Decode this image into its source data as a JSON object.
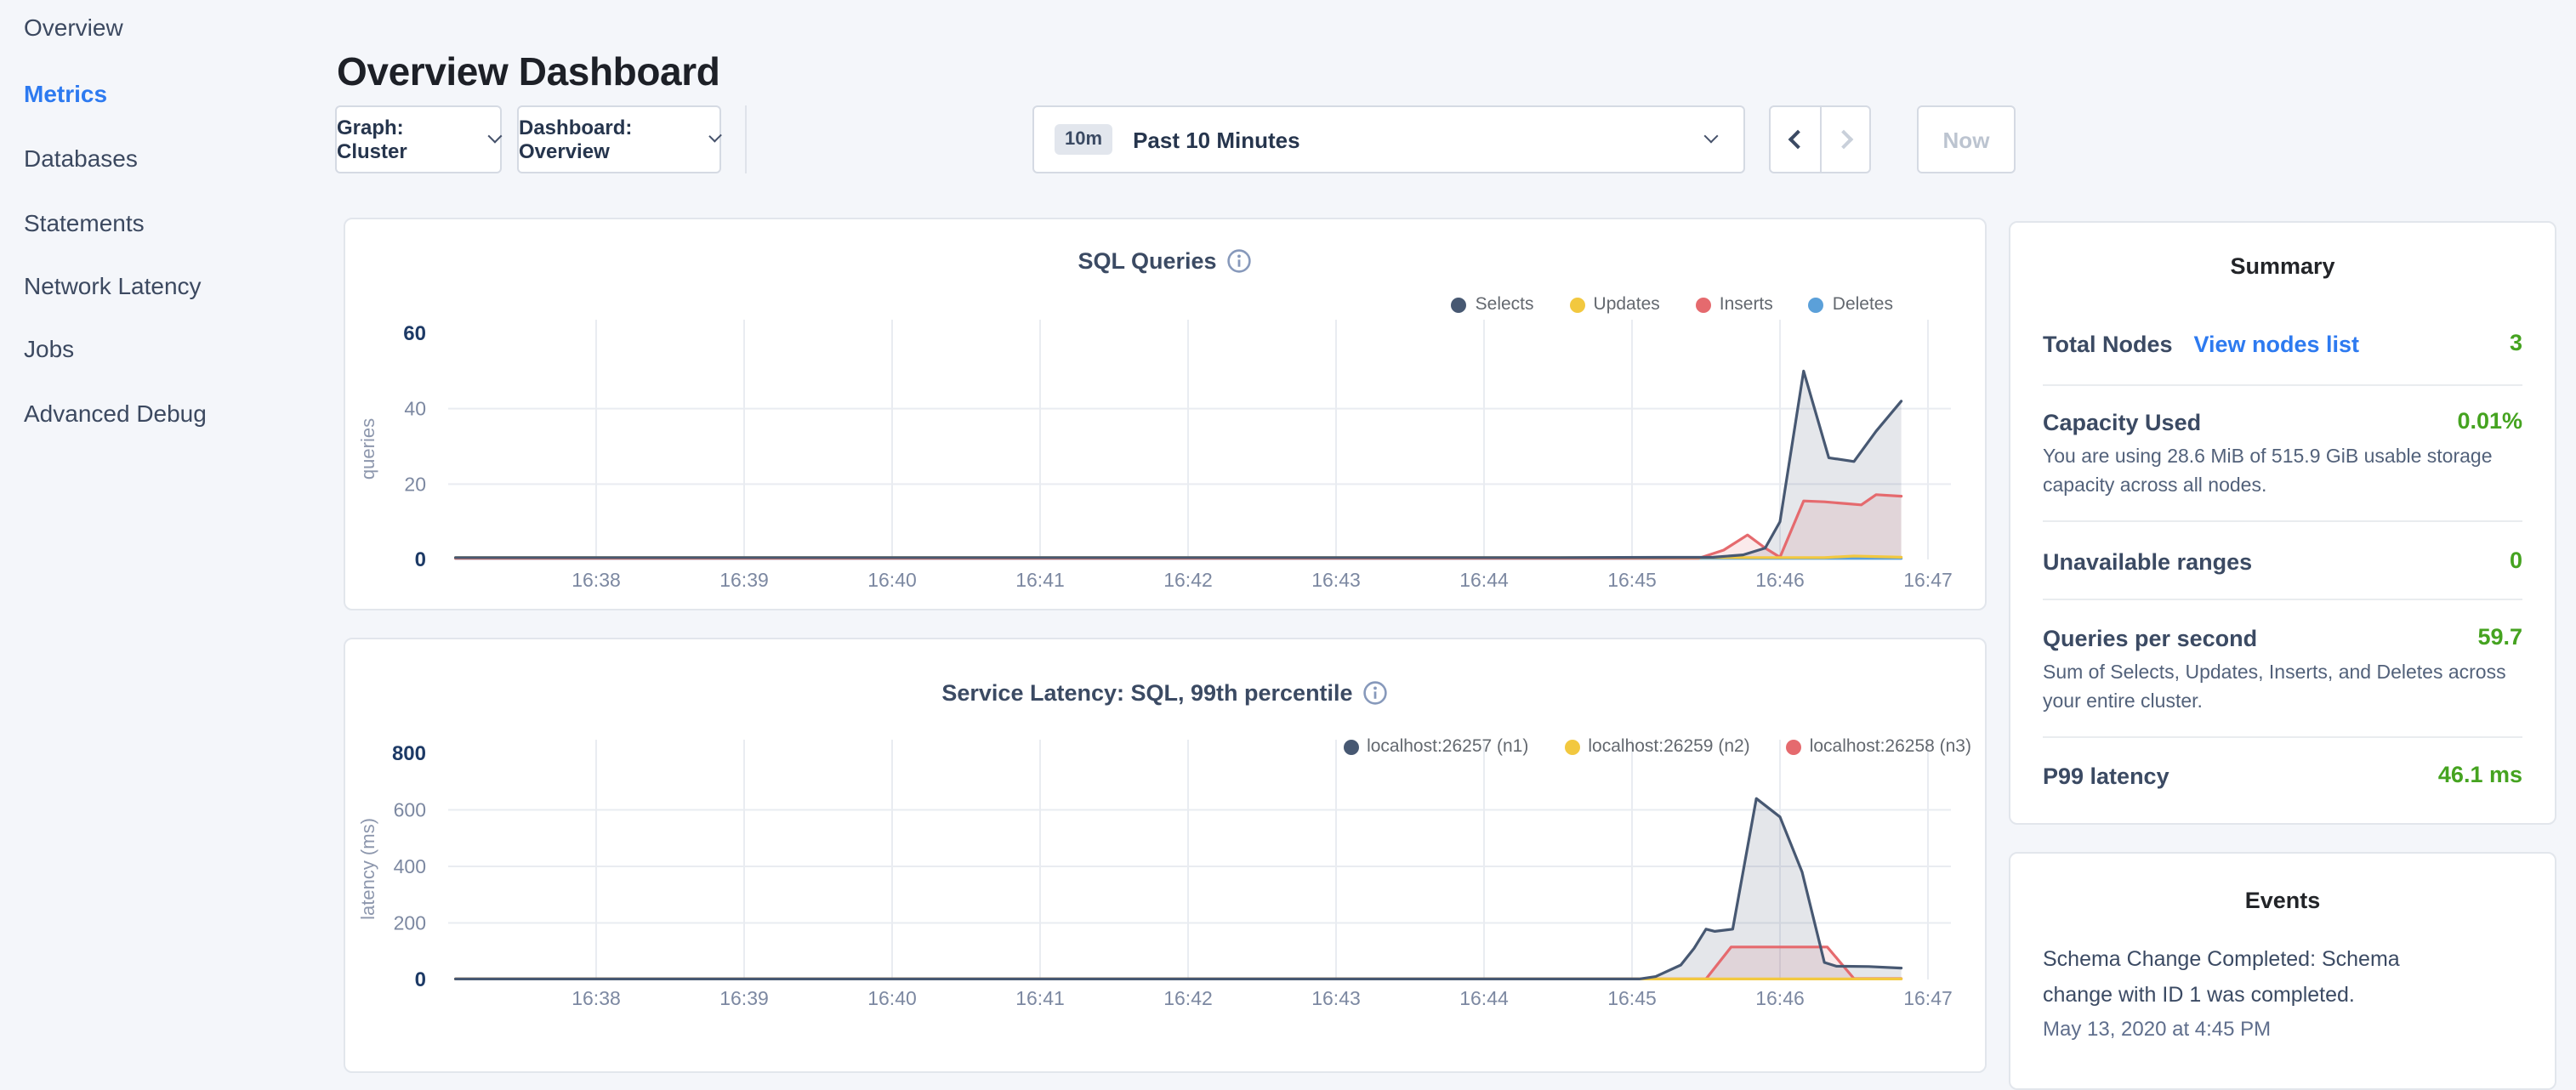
{
  "sidebar": {
    "items": [
      {
        "label": "Overview",
        "active": false
      },
      {
        "label": "Metrics",
        "active": true
      },
      {
        "label": "Databases",
        "active": false
      },
      {
        "label": "Statements",
        "active": false
      },
      {
        "label": "Network Latency",
        "active": false
      },
      {
        "label": "Jobs",
        "active": false
      },
      {
        "label": "Advanced Debug",
        "active": false
      }
    ]
  },
  "header": {
    "title": "Overview Dashboard"
  },
  "toolbar": {
    "graph_dropdown": "Graph: Cluster",
    "dashboard_dropdown": "Dashboard: Overview",
    "time_window_badge": "10m",
    "time_window_label": "Past 10 Minutes",
    "now_label": "Now"
  },
  "chart_data": [
    {
      "type": "area",
      "title": "SQL Queries",
      "ylabel": "queries",
      "ylim": [
        0,
        60
      ],
      "y_ticks": [
        0,
        20,
        40,
        60
      ],
      "x_domain": [
        37.0,
        47.15
      ],
      "x_ticks": [
        {
          "t": 38,
          "label": "16:38"
        },
        {
          "t": 39,
          "label": "16:39"
        },
        {
          "t": 40,
          "label": "16:40"
        },
        {
          "t": 41,
          "label": "16:41"
        },
        {
          "t": 42,
          "label": "16:42"
        },
        {
          "t": 43,
          "label": "16:43"
        },
        {
          "t": 44,
          "label": "16:44"
        },
        {
          "t": 45,
          "label": "16:45"
        },
        {
          "t": 46,
          "label": "16:46"
        },
        {
          "t": 47,
          "label": "16:47"
        }
      ],
      "grid": true,
      "legend_position": "top-right",
      "series": [
        {
          "name": "Selects",
          "color": "#475872",
          "fill": "rgba(71,88,114,0.14)",
          "points": [
            [
              37.05,
              0.5
            ],
            [
              44.5,
              0.5
            ],
            [
              45.55,
              0.6
            ],
            [
              45.75,
              1.2
            ],
            [
              45.9,
              3
            ],
            [
              46.0,
              10
            ],
            [
              46.16,
              50
            ],
            [
              46.33,
              27
            ],
            [
              46.5,
              26
            ],
            [
              46.65,
              34
            ],
            [
              46.82,
              42
            ]
          ]
        },
        {
          "name": "Updates",
          "color": "#f2c83f",
          "fill": "rgba(242,200,63,0.12)",
          "points": [
            [
              37.05,
              0.5
            ],
            [
              46.3,
              0.5
            ],
            [
              46.5,
              0.9
            ],
            [
              46.82,
              0.6
            ]
          ]
        },
        {
          "name": "Inserts",
          "color": "#e56a6e",
          "fill": "rgba(229,106,110,0.14)",
          "points": [
            [
              37.05,
              0.3
            ],
            [
              45.45,
              0.3
            ],
            [
              45.62,
              2.5
            ],
            [
              45.78,
              6.5
            ],
            [
              45.9,
              3
            ],
            [
              46.0,
              0.6
            ],
            [
              46.16,
              15.5
            ],
            [
              46.3,
              15.3
            ],
            [
              46.45,
              14.8
            ],
            [
              46.55,
              14.5
            ],
            [
              46.65,
              17.2
            ],
            [
              46.82,
              16.8
            ]
          ]
        },
        {
          "name": "Deletes",
          "color": "#5ba0d9",
          "fill": "rgba(91,160,217,0.12)",
          "points": [
            [
              37.05,
              0.25
            ],
            [
              46.82,
              0.25
            ]
          ]
        }
      ]
    },
    {
      "type": "area",
      "title": "Service Latency: SQL, 99th percentile",
      "ylabel": "latency (ms)",
      "ylim": [
        0,
        800
      ],
      "y_ticks": [
        0,
        200,
        400,
        600,
        800
      ],
      "x_domain": [
        37.0,
        47.15
      ],
      "x_ticks": [
        {
          "t": 38,
          "label": "16:38"
        },
        {
          "t": 39,
          "label": "16:39"
        },
        {
          "t": 40,
          "label": "16:40"
        },
        {
          "t": 41,
          "label": "16:41"
        },
        {
          "t": 42,
          "label": "16:42"
        },
        {
          "t": 43,
          "label": "16:43"
        },
        {
          "t": 44,
          "label": "16:44"
        },
        {
          "t": 45,
          "label": "16:45"
        },
        {
          "t": 46,
          "label": "16:46"
        },
        {
          "t": 47,
          "label": "16:47"
        }
      ],
      "grid": true,
      "legend_position": "top-right",
      "series": [
        {
          "name": "localhost:26257 (n1)",
          "color": "#475872",
          "fill": "rgba(71,88,114,0.15)",
          "points": [
            [
              37.05,
              2
            ],
            [
              45.05,
              2
            ],
            [
              45.16,
              10
            ],
            [
              45.33,
              51
            ],
            [
              45.42,
              110
            ],
            [
              45.5,
              178
            ],
            [
              45.56,
              170
            ],
            [
              45.68,
              178
            ],
            [
              45.84,
              640
            ],
            [
              46.0,
              575
            ],
            [
              46.15,
              380
            ],
            [
              46.3,
              60
            ],
            [
              46.38,
              47
            ],
            [
              46.6,
              46
            ],
            [
              46.82,
              40
            ]
          ]
        },
        {
          "name": "localhost:26259 (n2)",
          "color": "#f2c83f",
          "fill": "rgba(242,200,63,0.10)",
          "points": [
            [
              37.05,
              2
            ],
            [
              46.82,
              2
            ]
          ]
        },
        {
          "name": "localhost:26258 (n3)",
          "color": "#e56a6e",
          "fill": "rgba(229,106,110,0.14)",
          "points": [
            [
              37.05,
              2
            ],
            [
              45.5,
              2
            ],
            [
              45.67,
              115
            ],
            [
              46.32,
              115
            ],
            [
              46.5,
              3
            ],
            [
              46.82,
              3
            ]
          ]
        }
      ]
    }
  ],
  "summary": {
    "title": "Summary",
    "rows": [
      {
        "label": "Total Nodes",
        "link": "View nodes list",
        "value": "3"
      },
      {
        "label": "Capacity Used",
        "value": "0.01%",
        "description": "You are using 28.6 MiB of 515.9 GiB usable storage capacity across all nodes."
      },
      {
        "label": "Unavailable ranges",
        "value": "0"
      },
      {
        "label": "Queries per second",
        "value": "59.7",
        "description": "Sum of Selects, Updates, Inserts, and Deletes across your entire cluster."
      },
      {
        "label": "P99 latency",
        "value": "46.1 ms"
      }
    ]
  },
  "events": {
    "title": "Events",
    "items": [
      {
        "message": "Schema Change Completed: Schema change with ID 1 was completed.",
        "timestamp": "May 13, 2020 at 4:45 PM"
      }
    ]
  },
  "colors": {
    "background": "#f4f6fa",
    "accent_blue": "#2d7af0",
    "value_green": "#45a320",
    "dark_slate": "#3b4a63"
  }
}
